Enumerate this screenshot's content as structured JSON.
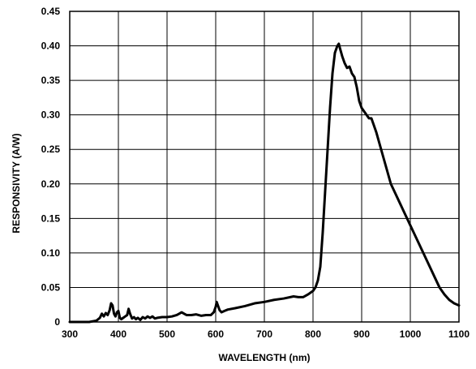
{
  "chart_data": {
    "type": "line",
    "title": "",
    "xlabel": "WAVELENGTH (nm)",
    "ylabel": "RESPONSIVITY (A/W)",
    "xlim": [
      300,
      1100
    ],
    "ylim": [
      0,
      0.45
    ],
    "grid": true,
    "legend": "none",
    "x_ticks": [
      "300",
      "400",
      "500",
      "600",
      "700",
      "800",
      "900",
      "1000",
      "1100"
    ],
    "y_ticks": [
      "0",
      "0.05",
      "0.10",
      "0.15",
      "0.20",
      "0.25",
      "0.30",
      "0.35",
      "0.40",
      "0.45"
    ],
    "series": [
      {
        "color": "#000000",
        "x": [
          300,
          320,
          340,
          355,
          362,
          366,
          370,
          374,
          378,
          382,
          385,
          388,
          391,
          394,
          397,
          400,
          403,
          406,
          410,
          414,
          418,
          421,
          424,
          428,
          432,
          436,
          440,
          445,
          450,
          455,
          460,
          465,
          470,
          475,
          480,
          490,
          500,
          510,
          520,
          525,
          530,
          535,
          540,
          550,
          560,
          570,
          580,
          590,
          596,
          600,
          602,
          604,
          608,
          612,
          618,
          625,
          640,
          660,
          680,
          700,
          720,
          740,
          760,
          770,
          780,
          790,
          800,
          805,
          810,
          815,
          820,
          825,
          830,
          835,
          840,
          845,
          850,
          853,
          856,
          860,
          865,
          870,
          875,
          880,
          885,
          890,
          895,
          900,
          905,
          910,
          915,
          920,
          925,
          930,
          940,
          950,
          960,
          970,
          980,
          990,
          1000,
          1010,
          1020,
          1030,
          1040,
          1050,
          1060,
          1070,
          1080,
          1090,
          1100
        ],
        "values": [
          0.0,
          0.0,
          0.0,
          0.002,
          0.006,
          0.012,
          0.008,
          0.013,
          0.01,
          0.017,
          0.027,
          0.024,
          0.012,
          0.008,
          0.014,
          0.016,
          0.006,
          0.004,
          0.006,
          0.008,
          0.01,
          0.019,
          0.012,
          0.005,
          0.007,
          0.004,
          0.006,
          0.003,
          0.007,
          0.005,
          0.008,
          0.006,
          0.008,
          0.005,
          0.006,
          0.007,
          0.007,
          0.008,
          0.01,
          0.012,
          0.014,
          0.012,
          0.01,
          0.01,
          0.011,
          0.009,
          0.01,
          0.01,
          0.014,
          0.022,
          0.029,
          0.025,
          0.017,
          0.014,
          0.016,
          0.018,
          0.02,
          0.023,
          0.027,
          0.029,
          0.032,
          0.034,
          0.037,
          0.036,
          0.036,
          0.04,
          0.045,
          0.05,
          0.06,
          0.08,
          0.13,
          0.19,
          0.25,
          0.31,
          0.36,
          0.39,
          0.4,
          0.403,
          0.395,
          0.385,
          0.375,
          0.368,
          0.37,
          0.36,
          0.355,
          0.34,
          0.32,
          0.31,
          0.305,
          0.3,
          0.295,
          0.295,
          0.285,
          0.275,
          0.25,
          0.225,
          0.2,
          0.185,
          0.17,
          0.155,
          0.14,
          0.125,
          0.11,
          0.095,
          0.08,
          0.065,
          0.05,
          0.04,
          0.032,
          0.027,
          0.024
        ]
      }
    ]
  }
}
